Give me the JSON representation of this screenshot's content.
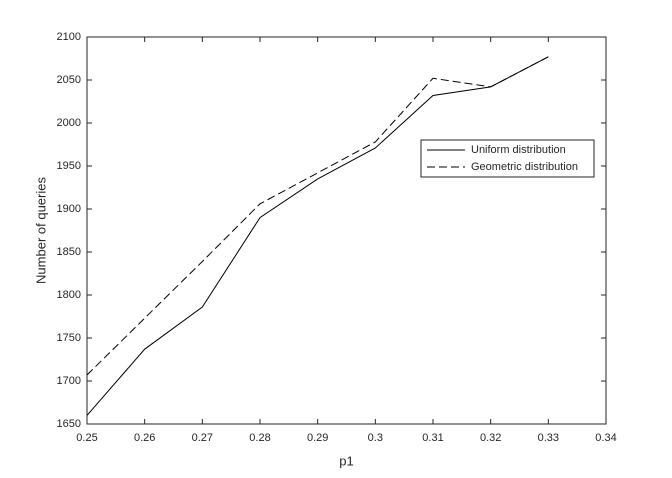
{
  "chart_data": {
    "type": "line",
    "x_label": "p1",
    "y_label": "Number of queries",
    "x": [
      0.25,
      0.26,
      0.27,
      0.28,
      0.29,
      0.3,
      0.31,
      0.32,
      0.33
    ],
    "series": [
      {
        "name": "Uniform distribution",
        "color": "#000000",
        "linestyle": "solid",
        "values": [
          1660,
          1737,
          1786,
          1890,
          1935,
          1971,
          2032,
          2042,
          2077
        ]
      },
      {
        "name": "Geometric distribution",
        "color": "#000000",
        "linestyle": "dashed",
        "values": [
          1707,
          1773,
          1839,
          1906,
          1942,
          1978,
          2052,
          2042,
          2077
        ]
      }
    ],
    "xlim": [
      0.25,
      0.34
    ],
    "xticks": [
      0.25,
      0.26,
      0.27,
      0.28,
      0.29,
      0.3,
      0.31,
      0.32,
      0.33,
      0.34
    ],
    "ylim": [
      1650,
      2100
    ],
    "yticks": [
      1650,
      1700,
      1750,
      1800,
      1850,
      1900,
      1950,
      2000,
      2050,
      2100
    ],
    "grid": false,
    "legend": "east"
  }
}
